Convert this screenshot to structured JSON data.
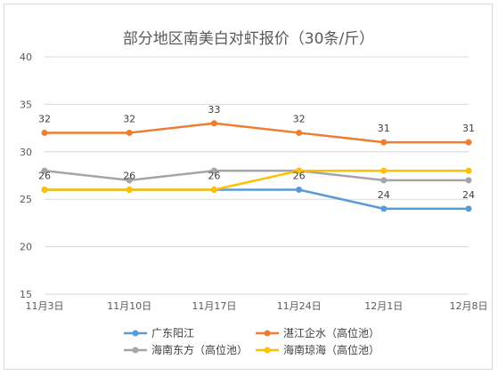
{
  "chart_data": {
    "type": "line",
    "title": "部分地区南美白对虾报价（30条/斤）",
    "xlabel": "",
    "ylabel": "",
    "categories": [
      "11月3日",
      "11月10日",
      "11月17日",
      "11月24日",
      "12月1日",
      "12月8日"
    ],
    "ylim": [
      15,
      40
    ],
    "yticks": [
      15,
      20,
      25,
      30,
      35,
      40
    ],
    "grid": true,
    "legend_position": "bottom",
    "series": [
      {
        "name": "广东阳江",
        "color": "#5b9bd5",
        "values": [
          26,
          26,
          26,
          26,
          24,
          24
        ],
        "labeled": [
          false,
          false,
          false,
          true,
          true,
          true
        ]
      },
      {
        "name": "湛江企水（高位池）",
        "color": "#ed7d31",
        "values": [
          32,
          32,
          33,
          32,
          31,
          31
        ],
        "labeled": [
          true,
          true,
          true,
          true,
          true,
          true
        ]
      },
      {
        "name": "海南东方（高位池）",
        "color": "#a5a5a5",
        "values": [
          28,
          27,
          28,
          28,
          27,
          27
        ],
        "labeled": [
          false,
          false,
          false,
          false,
          false,
          false
        ]
      },
      {
        "name": "海南琼海（高位池）",
        "color": "#ffc000",
        "values": [
          26,
          26,
          26,
          28,
          28,
          28
        ],
        "labeled": [
          true,
          true,
          true,
          false,
          false,
          false
        ]
      }
    ]
  }
}
